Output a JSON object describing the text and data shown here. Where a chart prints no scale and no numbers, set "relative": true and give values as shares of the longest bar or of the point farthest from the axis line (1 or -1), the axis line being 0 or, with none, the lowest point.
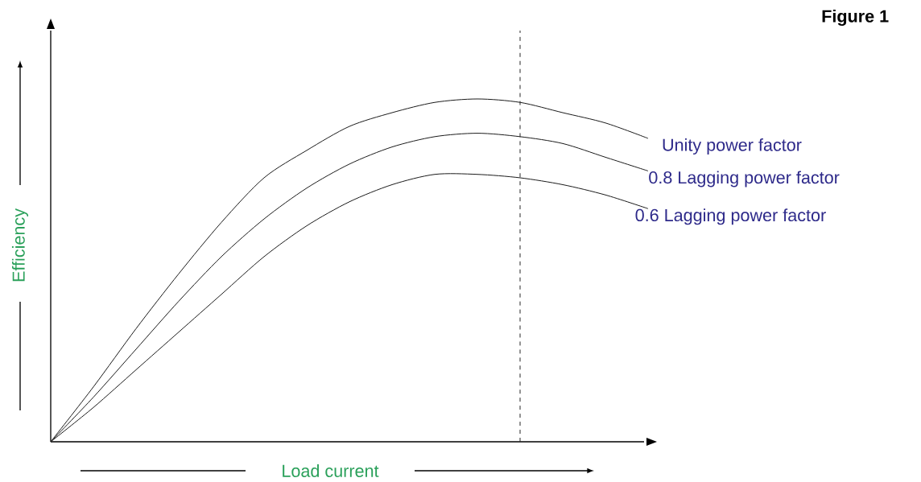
{
  "chart_data": {
    "type": "line",
    "title": "Figure 1",
    "xlabel": "Load current",
    "ylabel": "Efficiency",
    "relative": true,
    "legend": false,
    "categories": [
      null,
      null,
      null,
      null,
      null,
      null,
      null,
      null,
      null,
      null,
      null,
      null,
      null,
      null,
      null
    ],
    "series": [
      {
        "name": "Unity power factor",
        "color": "#1a1a1a",
        "values": [
          0,
          0.16,
          0.33,
          0.49,
          0.64,
          0.77,
          0.85,
          0.92,
          0.96,
          0.99,
          1.0,
          0.99,
          0.96,
          0.93,
          0.885
        ]
      },
      {
        "name": "0.8 Lagging power factor",
        "color": "#1a1a1a",
        "values": [
          0,
          0.13,
          0.27,
          0.41,
          0.54,
          0.65,
          0.74,
          0.81,
          0.86,
          0.89,
          0.9,
          0.89,
          0.87,
          0.83,
          0.79
        ]
      },
      {
        "name": "0.6 Lagging power factor",
        "color": "#1a1a1a",
        "values": [
          0,
          0.1,
          0.21,
          0.32,
          0.43,
          0.54,
          0.63,
          0.7,
          0.75,
          0.78,
          0.78,
          0.77,
          0.75,
          0.72,
          0.68
        ]
      }
    ]
  }
}
